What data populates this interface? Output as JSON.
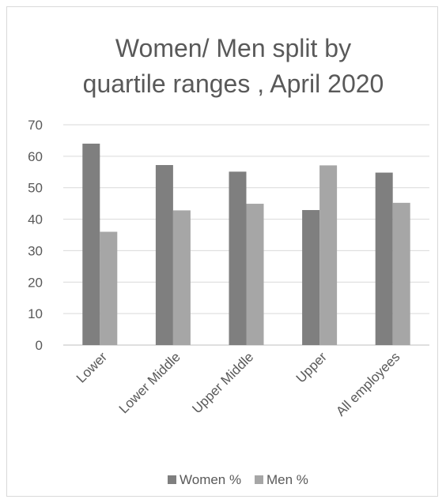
{
  "chart_data": {
    "type": "bar",
    "title_line1": "Women/ Men split by",
    "title_line2": "quartile ranges , April 2020",
    "categories": [
      "Lower",
      "Lower Middle",
      "Upper Middle",
      "Upper",
      "All employees"
    ],
    "series": [
      {
        "name": "Women %",
        "color": "#7f7f7f",
        "values": [
          64,
          57.2,
          55.1,
          42.9,
          54.8
        ]
      },
      {
        "name": "Men %",
        "color": "#a6a6a6",
        "values": [
          36,
          42.8,
          44.9,
          57.1,
          45.2
        ]
      }
    ],
    "ylim": [
      0,
      70
    ],
    "yticks": [
      0,
      10,
      20,
      30,
      40,
      50,
      60,
      70
    ],
    "grid": true,
    "legend": "bottom"
  }
}
